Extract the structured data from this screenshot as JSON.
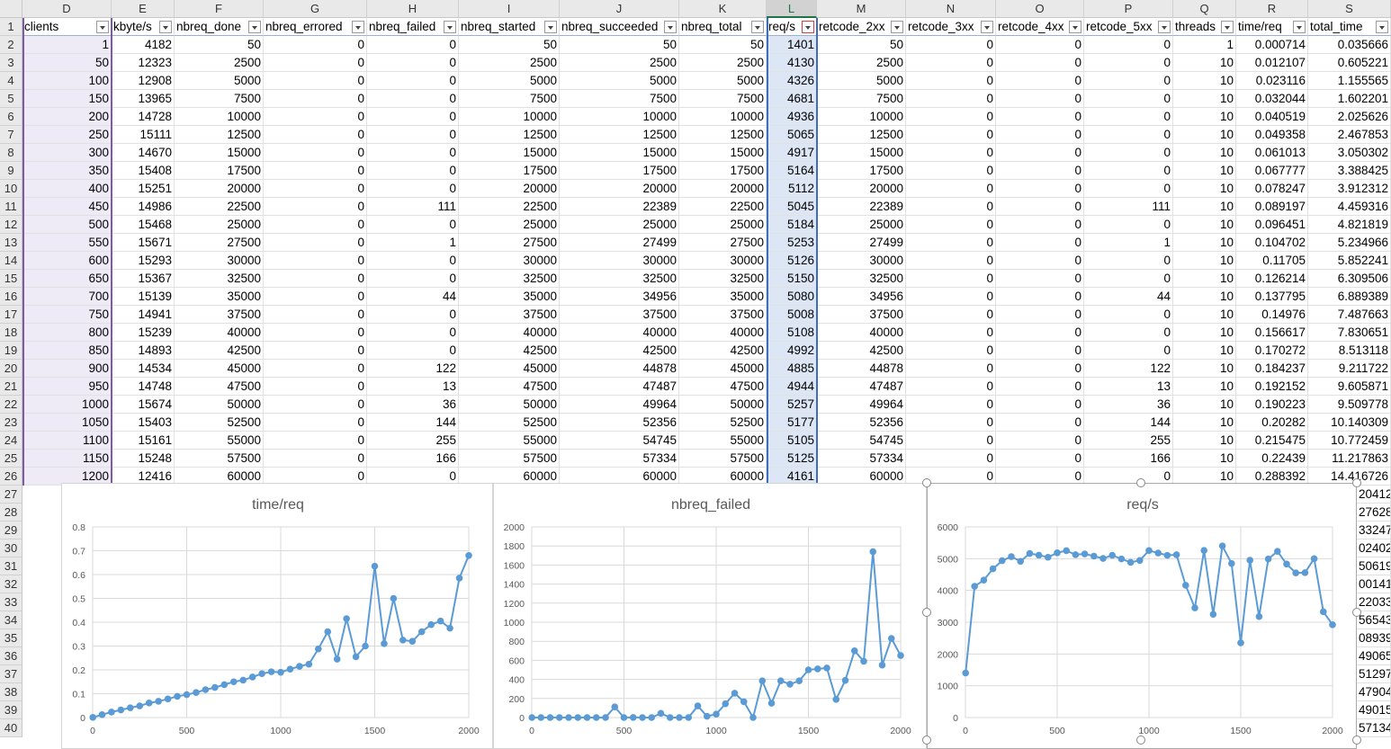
{
  "columns": [
    {
      "letter": "D",
      "header": "clients"
    },
    {
      "letter": "E",
      "header": "kbyte/s"
    },
    {
      "letter": "F",
      "header": "nbreq_done"
    },
    {
      "letter": "G",
      "header": "nbreq_errored"
    },
    {
      "letter": "H",
      "header": "nbreq_failed"
    },
    {
      "letter": "I",
      "header": "nbreq_started"
    },
    {
      "letter": "J",
      "header": "nbreq_succeeded"
    },
    {
      "letter": "K",
      "header": "nbreq_total"
    },
    {
      "letter": "L",
      "header": "req/s"
    },
    {
      "letter": "M",
      "header": "retcode_2xx"
    },
    {
      "letter": "N",
      "header": "retcode_3xx"
    },
    {
      "letter": "O",
      "header": "retcode_4xx"
    },
    {
      "letter": "P",
      "header": "retcode_5xx"
    },
    {
      "letter": "Q",
      "header": "threads"
    },
    {
      "letter": "R",
      "header": "time/req"
    },
    {
      "letter": "S",
      "header": "total_time"
    }
  ],
  "row_numbers": [
    "1",
    "2",
    "3",
    "4",
    "5",
    "6",
    "7",
    "8",
    "9",
    "10",
    "11",
    "12",
    "13",
    "14",
    "15",
    "16",
    "17",
    "18",
    "19",
    "20",
    "21",
    "22",
    "23",
    "24",
    "25",
    "26",
    "27",
    "28",
    "29",
    "30",
    "31",
    "32",
    "33",
    "34",
    "35",
    "36",
    "37",
    "38",
    "39",
    "40"
  ],
  "rows": [
    [
      "1",
      "4182",
      "50",
      "0",
      "0",
      "50",
      "50",
      "50",
      "1401",
      "50",
      "0",
      "0",
      "0",
      "1",
      "0.000714",
      "0.035666"
    ],
    [
      "50",
      "12323",
      "2500",
      "0",
      "0",
      "2500",
      "2500",
      "2500",
      "4130",
      "2500",
      "0",
      "0",
      "0",
      "10",
      "0.012107",
      "0.605221"
    ],
    [
      "100",
      "12908",
      "5000",
      "0",
      "0",
      "5000",
      "5000",
      "5000",
      "4326",
      "5000",
      "0",
      "0",
      "0",
      "10",
      "0.023116",
      "1.155565"
    ],
    [
      "150",
      "13965",
      "7500",
      "0",
      "0",
      "7500",
      "7500",
      "7500",
      "4681",
      "7500",
      "0",
      "0",
      "0",
      "10",
      "0.032044",
      "1.602201"
    ],
    [
      "200",
      "14728",
      "10000",
      "0",
      "0",
      "10000",
      "10000",
      "10000",
      "4936",
      "10000",
      "0",
      "0",
      "0",
      "10",
      "0.040519",
      "2.025626"
    ],
    [
      "250",
      "15111",
      "12500",
      "0",
      "0",
      "12500",
      "12500",
      "12500",
      "5065",
      "12500",
      "0",
      "0",
      "0",
      "10",
      "0.049358",
      "2.467853"
    ],
    [
      "300",
      "14670",
      "15000",
      "0",
      "0",
      "15000",
      "15000",
      "15000",
      "4917",
      "15000",
      "0",
      "0",
      "0",
      "10",
      "0.061013",
      "3.050302"
    ],
    [
      "350",
      "15408",
      "17500",
      "0",
      "0",
      "17500",
      "17500",
      "17500",
      "5164",
      "17500",
      "0",
      "0",
      "0",
      "10",
      "0.067777",
      "3.388425"
    ],
    [
      "400",
      "15251",
      "20000",
      "0",
      "0",
      "20000",
      "20000",
      "20000",
      "5112",
      "20000",
      "0",
      "0",
      "0",
      "10",
      "0.078247",
      "3.912312"
    ],
    [
      "450",
      "14986",
      "22500",
      "0",
      "111",
      "22500",
      "22389",
      "22500",
      "5045",
      "22389",
      "0",
      "0",
      "111",
      "10",
      "0.089197",
      "4.459316"
    ],
    [
      "500",
      "15468",
      "25000",
      "0",
      "0",
      "25000",
      "25000",
      "25000",
      "5184",
      "25000",
      "0",
      "0",
      "0",
      "10",
      "0.096451",
      "4.821819"
    ],
    [
      "550",
      "15671",
      "27500",
      "0",
      "1",
      "27500",
      "27499",
      "27500",
      "5253",
      "27499",
      "0",
      "0",
      "1",
      "10",
      "0.104702",
      "5.234966"
    ],
    [
      "600",
      "15293",
      "30000",
      "0",
      "0",
      "30000",
      "30000",
      "30000",
      "5126",
      "30000",
      "0",
      "0",
      "0",
      "10",
      "0.11705",
      "5.852241"
    ],
    [
      "650",
      "15367",
      "32500",
      "0",
      "0",
      "32500",
      "32500",
      "32500",
      "5150",
      "32500",
      "0",
      "0",
      "0",
      "10",
      "0.126214",
      "6.309506"
    ],
    [
      "700",
      "15139",
      "35000",
      "0",
      "44",
      "35000",
      "34956",
      "35000",
      "5080",
      "34956",
      "0",
      "0",
      "44",
      "10",
      "0.137795",
      "6.889389"
    ],
    [
      "750",
      "14941",
      "37500",
      "0",
      "0",
      "37500",
      "37500",
      "37500",
      "5008",
      "37500",
      "0",
      "0",
      "0",
      "10",
      "0.14976",
      "7.487663"
    ],
    [
      "800",
      "15239",
      "40000",
      "0",
      "0",
      "40000",
      "40000",
      "40000",
      "5108",
      "40000",
      "0",
      "0",
      "0",
      "10",
      "0.156617",
      "7.830651"
    ],
    [
      "850",
      "14893",
      "42500",
      "0",
      "0",
      "42500",
      "42500",
      "42500",
      "4992",
      "42500",
      "0",
      "0",
      "0",
      "10",
      "0.170272",
      "8.513118"
    ],
    [
      "900",
      "14534",
      "45000",
      "0",
      "122",
      "45000",
      "44878",
      "45000",
      "4885",
      "44878",
      "0",
      "0",
      "122",
      "10",
      "0.184237",
      "9.211722"
    ],
    [
      "950",
      "14748",
      "47500",
      "0",
      "13",
      "47500",
      "47487",
      "47500",
      "4944",
      "47487",
      "0",
      "0",
      "13",
      "10",
      "0.192152",
      "9.605871"
    ],
    [
      "1000",
      "15674",
      "50000",
      "0",
      "36",
      "50000",
      "49964",
      "50000",
      "5257",
      "49964",
      "0",
      "0",
      "36",
      "10",
      "0.190223",
      "9.509778"
    ],
    [
      "1050",
      "15403",
      "52500",
      "0",
      "144",
      "52500",
      "52356",
      "52500",
      "5177",
      "52356",
      "0",
      "0",
      "144",
      "10",
      "0.20282",
      "10.140309"
    ],
    [
      "1100",
      "15161",
      "55000",
      "0",
      "255",
      "55000",
      "54745",
      "55000",
      "5105",
      "54745",
      "0",
      "0",
      "255",
      "10",
      "0.215475",
      "10.772459"
    ],
    [
      "1150",
      "15248",
      "57500",
      "0",
      "166",
      "57500",
      "57334",
      "57500",
      "5125",
      "57334",
      "0",
      "0",
      "166",
      "10",
      "0.22439",
      "11.217863"
    ],
    [
      "1200",
      "12416",
      "60000",
      "0",
      "0",
      "60000",
      "60000",
      "60000",
      "4161",
      "60000",
      "0",
      "0",
      "0",
      "10",
      "0.288392",
      "14.416726"
    ]
  ],
  "hidden_col_s_fragments": [
    "20412",
    "27628",
    "33247",
    "02402",
    "50619",
    "00141",
    "22033",
    "56543",
    "08939",
    "49065",
    "51297",
    "47904",
    "49015",
    "57134"
  ],
  "filter_active_column": "L",
  "selected_column": "L",
  "accent_colors": {
    "series": "#5b9bd5",
    "selected_header": "#217346",
    "filter_active": "#d04040",
    "clients_tint": "#efebf6",
    "reqs_tint": "#dce6f4"
  },
  "charts": [
    {
      "title": "time/req",
      "chart_data": {
        "type": "line",
        "title": "time/req",
        "xlim": [
          0,
          2000
        ],
        "xticks": [
          0,
          500,
          1000,
          1500,
          2000
        ],
        "ylim": [
          0,
          0.8
        ],
        "yticks": [
          "0",
          "0.1",
          "0.2",
          "0.3",
          "0.4",
          "0.5",
          "0.6",
          "0.7",
          "0.8"
        ],
        "x": [
          1,
          50,
          100,
          150,
          200,
          250,
          300,
          350,
          400,
          450,
          500,
          550,
          600,
          650,
          700,
          750,
          800,
          850,
          900,
          950,
          1000,
          1050,
          1100,
          1150,
          1200,
          1250,
          1300,
          1350,
          1400,
          1450,
          1500,
          1550,
          1600,
          1650,
          1700,
          1750,
          1800,
          1850,
          1900,
          1950,
          2000
        ],
        "values": [
          0.0007,
          0.012,
          0.023,
          0.032,
          0.041,
          0.049,
          0.061,
          0.068,
          0.078,
          0.089,
          0.096,
          0.105,
          0.117,
          0.126,
          0.138,
          0.15,
          0.157,
          0.17,
          0.184,
          0.192,
          0.19,
          0.203,
          0.215,
          0.224,
          0.288,
          0.36,
          0.245,
          0.415,
          0.255,
          0.3,
          0.635,
          0.31,
          0.5,
          0.325,
          0.32,
          0.36,
          0.39,
          0.405,
          0.375,
          0.585,
          0.68
        ]
      }
    },
    {
      "title": "nbreq_failed",
      "chart_data": {
        "type": "line",
        "title": "nbreq_failed",
        "xlim": [
          0,
          2000
        ],
        "xticks": [
          0,
          500,
          1000,
          1500,
          2000
        ],
        "ylim": [
          0,
          2000
        ],
        "yticks": [
          "0",
          "200",
          "400",
          "600",
          "800",
          "1000",
          "1200",
          "1400",
          "1600",
          "1800",
          "2000"
        ],
        "x": [
          1,
          50,
          100,
          150,
          200,
          250,
          300,
          350,
          400,
          450,
          500,
          550,
          600,
          650,
          700,
          750,
          800,
          850,
          900,
          950,
          1000,
          1050,
          1100,
          1150,
          1200,
          1250,
          1300,
          1350,
          1400,
          1450,
          1500,
          1550,
          1600,
          1650,
          1700,
          1750,
          1800,
          1850,
          1900,
          1950,
          2000
        ],
        "values": [
          0,
          0,
          0,
          0,
          0,
          0,
          0,
          0,
          0,
          111,
          0,
          1,
          0,
          0,
          44,
          0,
          0,
          0,
          122,
          13,
          36,
          144,
          255,
          166,
          0,
          385,
          150,
          385,
          350,
          385,
          500,
          510,
          520,
          190,
          390,
          700,
          590,
          1740,
          550,
          830,
          650
        ]
      }
    },
    {
      "title": "req/s",
      "chart_data": {
        "type": "line",
        "title": "req/s",
        "xlim": [
          0,
          2000
        ],
        "xticks": [
          0,
          500,
          1000,
          1500,
          2000
        ],
        "ylim": [
          0,
          6000
        ],
        "yticks": [
          "0",
          "1000",
          "2000",
          "3000",
          "4000",
          "5000",
          "6000"
        ],
        "x": [
          1,
          50,
          100,
          150,
          200,
          250,
          300,
          350,
          400,
          450,
          500,
          550,
          600,
          650,
          700,
          750,
          800,
          850,
          900,
          950,
          1000,
          1050,
          1100,
          1150,
          1200,
          1250,
          1300,
          1350,
          1400,
          1450,
          1500,
          1550,
          1600,
          1650,
          1700,
          1750,
          1800,
          1850,
          1900,
          1950,
          2000
        ],
        "values": [
          1401,
          4130,
          4326,
          4681,
          4936,
          5065,
          4917,
          5164,
          5112,
          5045,
          5184,
          5253,
          5126,
          5150,
          5080,
          5008,
          5108,
          4992,
          4885,
          4944,
          5257,
          5177,
          5105,
          5125,
          4161,
          3450,
          5260,
          3250,
          5400,
          4850,
          2350,
          4950,
          3180,
          4990,
          5230,
          4830,
          4550,
          4560,
          5000,
          3330,
          2920
        ]
      }
    }
  ]
}
